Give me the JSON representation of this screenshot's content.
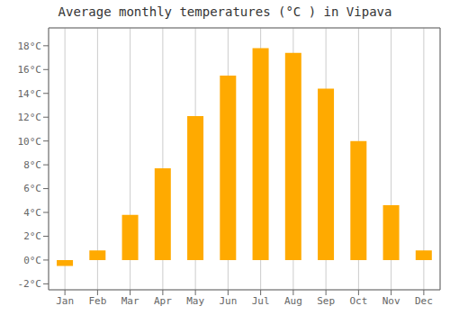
{
  "chart_data": {
    "type": "bar",
    "title": "Average monthly temperatures (°C ) in Vipava",
    "categories": [
      "Jan",
      "Feb",
      "Mar",
      "Apr",
      "May",
      "Jun",
      "Jul",
      "Aug",
      "Sep",
      "Oct",
      "Nov",
      "Dec"
    ],
    "values": [
      -0.5,
      0.8,
      3.8,
      7.7,
      12.1,
      15.5,
      17.8,
      17.4,
      14.4,
      10.0,
      4.6,
      0.8
    ],
    "color": "#FFAA00",
    "ylim": [
      -2.5,
      19.5
    ],
    "yticks": [
      {
        "value": -2,
        "label": "-2°C"
      },
      {
        "value": 0,
        "label": "0°C"
      },
      {
        "value": 2,
        "label": "2°C"
      },
      {
        "value": 4,
        "label": "4°C"
      },
      {
        "value": 6,
        "label": "6°C"
      },
      {
        "value": 8,
        "label": "8°C"
      },
      {
        "value": 10,
        "label": "10°C"
      },
      {
        "value": 12,
        "label": "12°C"
      },
      {
        "value": 14,
        "label": "14°C"
      },
      {
        "value": 16,
        "label": "16°C"
      },
      {
        "value": 18,
        "label": "18°C"
      }
    ],
    "grid": true
  }
}
